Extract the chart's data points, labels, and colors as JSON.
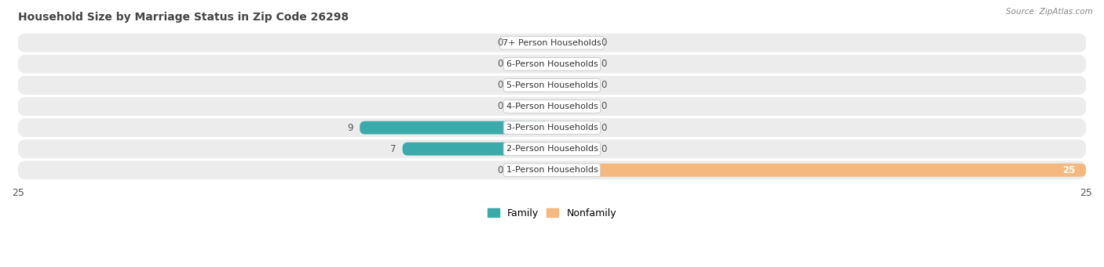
{
  "title": "Household Size by Marriage Status in Zip Code 26298",
  "source": "Source: ZipAtlas.com",
  "categories": [
    "1-Person Households",
    "2-Person Households",
    "3-Person Households",
    "4-Person Households",
    "5-Person Households",
    "6-Person Households",
    "7+ Person Households"
  ],
  "family_values": [
    0,
    7,
    9,
    0,
    0,
    0,
    0
  ],
  "nonfamily_values": [
    25,
    0,
    0,
    0,
    0,
    0,
    0
  ],
  "family_color": "#3aabaa",
  "nonfamily_color": "#f5b97f",
  "row_bg_color": "#ececec",
  "row_bg_color2": "#e0e0e0",
  "xlim": 25,
  "legend_family": "Family",
  "legend_nonfamily": "Nonfamily",
  "title_fontsize": 10,
  "source_fontsize": 7.5,
  "axis_label_fontsize": 9,
  "bar_label_fontsize": 8.5,
  "category_fontsize": 8,
  "stub_size": 2.0
}
